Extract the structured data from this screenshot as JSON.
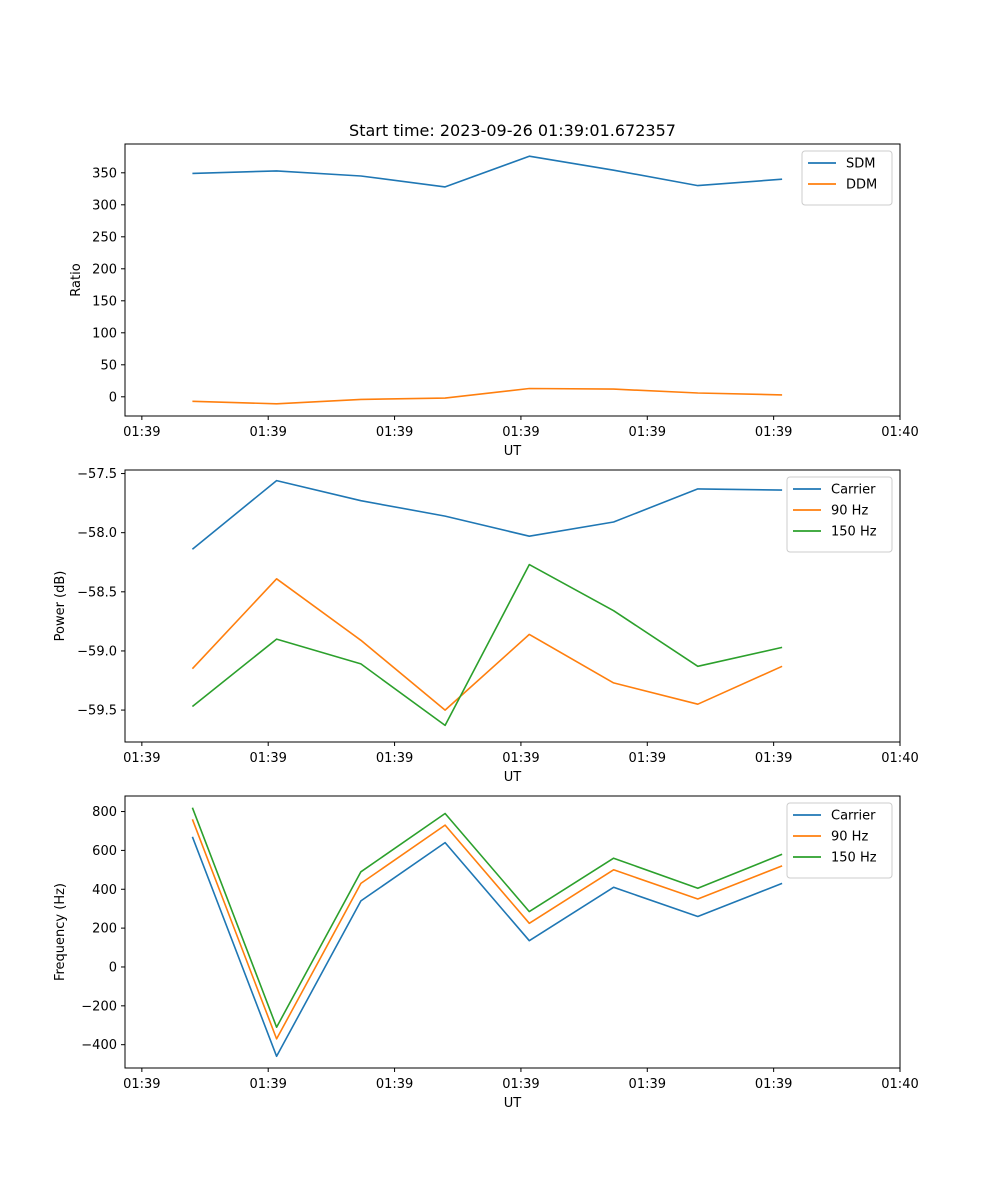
{
  "chart_data": [
    {
      "type": "line",
      "title": "Start time: 2023-09-26 01:39:01.672357",
      "xlabel": "UT",
      "ylabel": "Ratio",
      "x": [
        1,
        2,
        3,
        4,
        5,
        6,
        7,
        8
      ],
      "xlim": [
        0.2,
        9.4
      ],
      "ylim": [
        -30,
        395
      ],
      "xticks": [
        0.4,
        1.9,
        3.4,
        4.9,
        6.4,
        7.9,
        9.4
      ],
      "xtick_labels": [
        "01:39",
        "01:39",
        "01:39",
        "01:39",
        "01:39",
        "01:39",
        "01:40"
      ],
      "yticks": [
        0,
        50,
        100,
        150,
        200,
        250,
        300,
        350
      ],
      "ytick_labels": [
        "0",
        "50",
        "100",
        "150",
        "200",
        "250",
        "300",
        "350"
      ],
      "grid": false,
      "legend": "top-right",
      "series": [
        {
          "name": "SDM",
          "color": "#1f77b4",
          "values": [
            349,
            353,
            345,
            328,
            376,
            354,
            330,
            340
          ]
        },
        {
          "name": "DDM",
          "color": "#ff7f0e",
          "values": [
            -7,
            -11,
            -4,
            -2,
            13,
            12,
            6,
            3
          ]
        }
      ]
    },
    {
      "type": "line",
      "title": "",
      "xlabel": "UT",
      "ylabel": "Power (dB)",
      "x": [
        1,
        2,
        3,
        4,
        5,
        6,
        7,
        8
      ],
      "xlim": [
        0.2,
        9.4
      ],
      "ylim": [
        -59.77,
        -57.47
      ],
      "xticks": [
        0.4,
        1.9,
        3.4,
        4.9,
        6.4,
        7.9,
        9.4
      ],
      "xtick_labels": [
        "01:39",
        "01:39",
        "01:39",
        "01:39",
        "01:39",
        "01:39",
        "01:40"
      ],
      "yticks": [
        -59.5,
        -59.0,
        -58.5,
        -58.0,
        -57.5
      ],
      "ytick_labels": [
        "−59.5",
        "−59.0",
        "−58.5",
        "−58.0",
        "−57.5"
      ],
      "grid": false,
      "legend": "top-right",
      "series": [
        {
          "name": "Carrier",
          "color": "#1f77b4",
          "values": [
            -58.14,
            -57.56,
            -57.73,
            -57.86,
            -58.03,
            -57.91,
            -57.63,
            -57.64
          ]
        },
        {
          "name": "90 Hz",
          "color": "#ff7f0e",
          "values": [
            -59.15,
            -58.39,
            -58.91,
            -59.5,
            -58.86,
            -59.27,
            -59.45,
            -59.13
          ]
        },
        {
          "name": "150 Hz",
          "color": "#2ca02c",
          "values": [
            -59.47,
            -58.9,
            -59.11,
            -59.63,
            -58.27,
            -58.66,
            -59.13,
            -58.97
          ]
        }
      ]
    },
    {
      "type": "line",
      "title": "",
      "xlabel": "UT",
      "ylabel": "Frequency (Hz)",
      "x": [
        1,
        2,
        3,
        4,
        5,
        6,
        7,
        8
      ],
      "xlim": [
        0.2,
        9.4
      ],
      "ylim": [
        -520,
        880
      ],
      "xticks": [
        0.4,
        1.9,
        3.4,
        4.9,
        6.4,
        7.9,
        9.4
      ],
      "xtick_labels": [
        "01:39",
        "01:39",
        "01:39",
        "01:39",
        "01:39",
        "01:39",
        "01:40"
      ],
      "yticks": [
        -400,
        -200,
        0,
        200,
        400,
        600,
        800
      ],
      "ytick_labels": [
        "−400",
        "−200",
        "0",
        "200",
        "400",
        "600",
        "800"
      ],
      "grid": false,
      "legend": "top-right",
      "series": [
        {
          "name": "Carrier",
          "color": "#1f77b4",
          "values": [
            670,
            -460,
            340,
            640,
            135,
            410,
            260,
            430
          ]
        },
        {
          "name": "90 Hz",
          "color": "#ff7f0e",
          "values": [
            760,
            -370,
            430,
            730,
            225,
            500,
            350,
            520
          ]
        },
        {
          "name": "150 Hz",
          "color": "#2ca02c",
          "values": [
            820,
            -310,
            490,
            790,
            285,
            560,
            405,
            580
          ]
        }
      ]
    }
  ]
}
